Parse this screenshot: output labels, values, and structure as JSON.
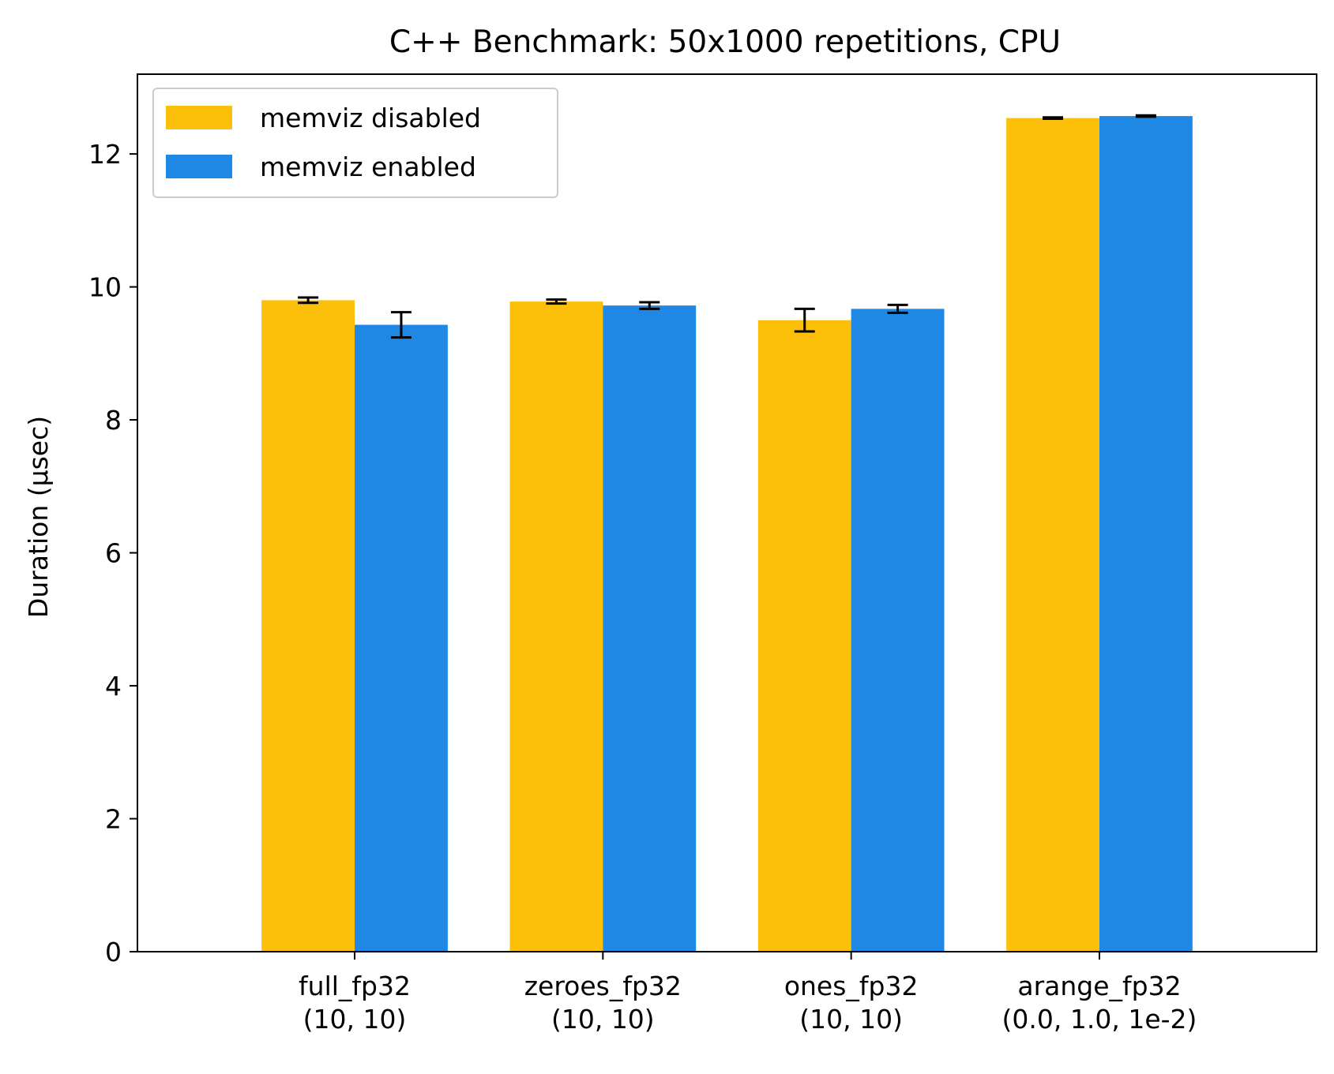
{
  "chart_data": {
    "type": "bar",
    "title": "C++ Benchmark: 50x1000 repetitions, CPU",
    "xlabel": "",
    "ylabel": "Duration (µsec)",
    "ylim": [
      0,
      13.2
    ],
    "yticks": [
      0,
      2,
      4,
      6,
      8,
      10,
      12
    ],
    "grid": false,
    "legend_position": "top-left",
    "categories": [
      [
        "full_fp32",
        "(10, 10)"
      ],
      [
        "zeroes_fp32",
        "(10, 10)"
      ],
      [
        "ones_fp32",
        "(10, 10)"
      ],
      [
        "arange_fp32",
        "(0.0, 1.0, 1e-2)"
      ]
    ],
    "series": [
      {
        "name": "memviz disabled",
        "color": "#FDC00A",
        "values": [
          9.8,
          9.78,
          9.5,
          12.54
        ],
        "errors": [
          0.04,
          0.03,
          0.17,
          0.01
        ]
      },
      {
        "name": "memviz enabled",
        "color": "#1F88E4",
        "values": [
          9.43,
          9.72,
          9.67,
          12.57
        ],
        "errors": [
          0.19,
          0.05,
          0.06,
          0.01
        ]
      }
    ]
  }
}
